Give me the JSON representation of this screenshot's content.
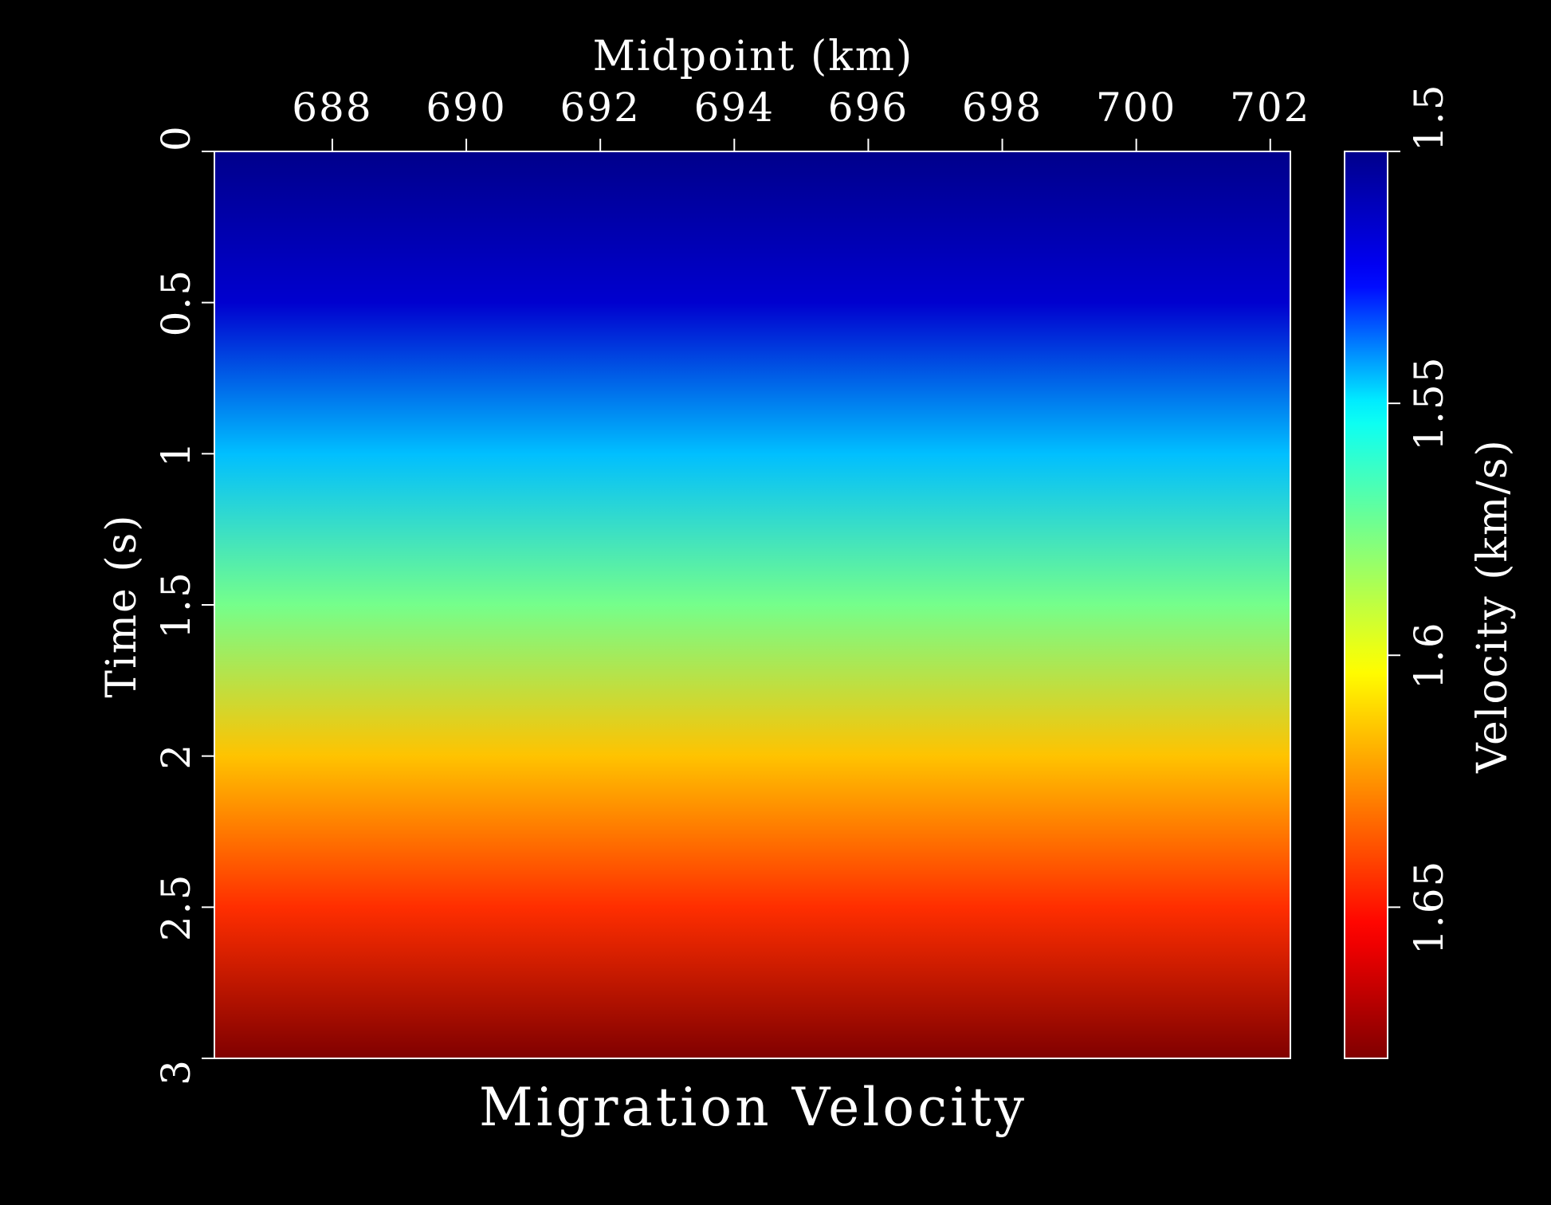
{
  "chart_data": {
    "type": "heatmap",
    "title": "Migration Velocity",
    "xlabel": "Midpoint (km)",
    "ylabel": "Time (s)",
    "colorbar_label": "Velocity (km/s)",
    "xlim": [
      686.24,
      702.3
    ],
    "ylim": [
      0,
      3
    ],
    "y_inverted": true,
    "x_axis_position": "top",
    "x_ticks": [
      688,
      690,
      692,
      694,
      696,
      698,
      700,
      702
    ],
    "x_tick_labels": [
      "688",
      "690",
      "692",
      "694",
      "696",
      "698",
      "700",
      "702"
    ],
    "y_ticks": [
      0,
      0.5,
      1,
      1.5,
      2,
      2.5,
      3
    ],
    "y_tick_labels": [
      "0",
      "0.5",
      "1",
      "1.5",
      "2",
      "2.5",
      "3"
    ],
    "colorbar_range": [
      1.5,
      1.68
    ],
    "colorbar_ticks": [
      1.5,
      1.55,
      1.6,
      1.65
    ],
    "colorbar_tick_labels": [
      "1.5",
      "1.55",
      "1.6",
      "1.65"
    ],
    "colorbar_position": "right",
    "colormap": [
      "#00008b",
      "#0000ff",
      "#00ffff",
      "#80ff80",
      "#ffff00",
      "#ff8000",
      "#ff0000",
      "#800000"
    ],
    "time_s": [
      0,
      0.5,
      1,
      1.5,
      2,
      2.5,
      3
    ],
    "velocity_km_s": [
      1.5,
      1.515,
      1.545,
      1.575,
      1.615,
      1.645,
      1.68
    ],
    "grid": false
  }
}
